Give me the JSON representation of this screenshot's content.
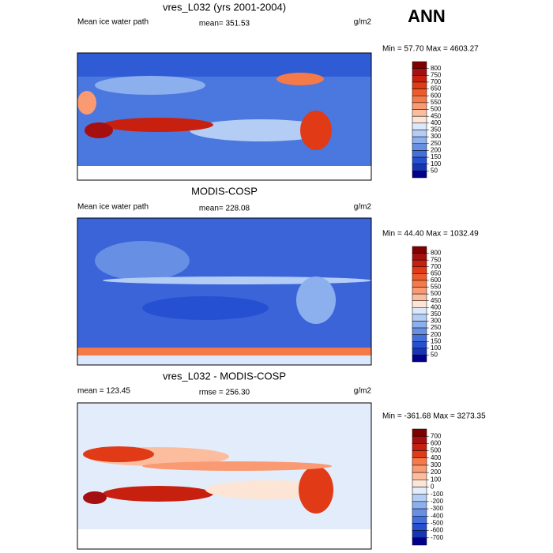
{
  "header": {
    "title": "ANN"
  },
  "panels": [
    {
      "title": "vres_L032 (yrs 2001-2004)",
      "left": "Mean ice water path",
      "center": "mean= 351.53",
      "right": "g/m2",
      "minmax": "Min =  57.70 Max = 4603.27",
      "colorbar": {
        "levels": [
          800,
          750,
          700,
          650,
          600,
          550,
          500,
          450,
          400,
          350,
          300,
          250,
          200,
          150,
          100,
          50
        ],
        "colors": [
          "#800000",
          "#a50f0f",
          "#c8200e",
          "#e03a16",
          "#ef5a2a",
          "#f57a4a",
          "#f99a72",
          "#fcbd9f",
          "#fde5d6",
          "#dbe7fb",
          "#b4cdf4",
          "#8cb0ed",
          "#678fe4",
          "#4470dc",
          "#2650d2",
          "#1535b5",
          "#00008b"
        ]
      }
    },
    {
      "title": "MODIS-COSP",
      "left": "Mean ice water path",
      "center": "mean= 228.08",
      "right": "g/m2",
      "minmax": "Min =  44.40 Max = 1032.49",
      "colorbar": {
        "levels": [
          800,
          750,
          700,
          650,
          600,
          550,
          500,
          450,
          400,
          350,
          300,
          250,
          200,
          150,
          100,
          50
        ],
        "colors": [
          "#800000",
          "#a50f0f",
          "#c8200e",
          "#e03a16",
          "#ef5a2a",
          "#f57a4a",
          "#f99a72",
          "#fcbd9f",
          "#fde5d6",
          "#dbe7fb",
          "#b4cdf4",
          "#8cb0ed",
          "#678fe4",
          "#4470dc",
          "#2650d2",
          "#1535b5",
          "#00008b"
        ]
      }
    },
    {
      "title": "vres_L032 - MODIS-COSP",
      "left": "mean = 123.45",
      "center": "rmse = 256.30",
      "right": "g/m2",
      "minmax": "Min = -361.68 Max = 3273.35",
      "colorbar": {
        "levels": [
          700,
          600,
          500,
          400,
          300,
          200,
          100,
          0,
          -100,
          -200,
          -300,
          -400,
          -500,
          -600,
          -700
        ],
        "colors": [
          "#800000",
          "#a50f0f",
          "#c8200e",
          "#e03a16",
          "#f57a4a",
          "#f99a72",
          "#fcbd9f",
          "#fde5d6",
          "#e2ecfb",
          "#b4cdf4",
          "#8cb0ed",
          "#678fe4",
          "#4470dc",
          "#2650d2",
          "#1535b5",
          "#00008b"
        ]
      }
    }
  ]
}
